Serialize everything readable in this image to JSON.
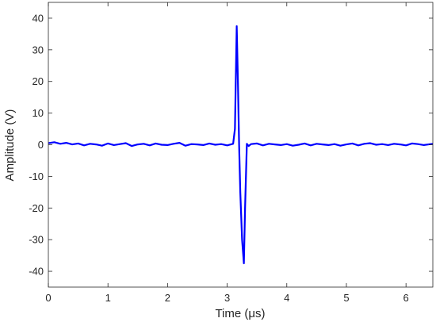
{
  "chart_data": {
    "type": "line",
    "title": "",
    "xlabel": "Time (μs)",
    "ylabel": "Amplitude (V)",
    "xlim": [
      0,
      6.45
    ],
    "ylim": [
      -45,
      45
    ],
    "xticks": [
      0,
      1,
      2,
      3,
      4,
      5,
      6
    ],
    "yticks": [
      40,
      30,
      20,
      10,
      0,
      -10,
      -20,
      -30,
      -40
    ],
    "xtick_labels": [
      "0",
      "1",
      "2",
      "3",
      "4",
      "5",
      "6"
    ],
    "ytick_labels": [
      "40",
      "30",
      "20",
      "10",
      "0",
      "-10",
      "-20",
      "-30",
      "-40"
    ],
    "grid": false,
    "legend": "none",
    "series": [
      {
        "color": "#0000ff",
        "x": [
          0,
          0.1,
          0.2,
          0.3,
          0.4,
          0.5,
          0.6,
          0.7,
          0.8,
          0.9,
          1.0,
          1.1,
          1.2,
          1.3,
          1.4,
          1.5,
          1.6,
          1.7,
          1.8,
          1.9,
          2.0,
          2.1,
          2.2,
          2.3,
          2.4,
          2.5,
          2.6,
          2.7,
          2.8,
          2.9,
          3.0,
          3.1,
          3.13,
          3.16,
          3.18,
          3.2,
          3.22,
          3.25,
          3.28,
          3.3,
          3.33,
          3.36,
          3.4,
          3.5,
          3.6,
          3.7,
          3.8,
          3.9,
          4.0,
          4.1,
          4.2,
          4.3,
          4.4,
          4.5,
          4.6,
          4.7,
          4.8,
          4.9,
          5.0,
          5.1,
          5.2,
          5.3,
          5.4,
          5.5,
          5.6,
          5.7,
          5.8,
          5.9,
          6.0,
          6.1,
          6.2,
          6.3,
          6.45
        ],
        "y": [
          0.5,
          0.8,
          0.3,
          0.6,
          0.1,
          0.4,
          -0.2,
          0.3,
          0.1,
          -0.3,
          0.4,
          -0.1,
          0.2,
          0.5,
          -0.4,
          0.1,
          0.3,
          -0.2,
          0.4,
          0.0,
          -0.1,
          0.3,
          0.6,
          -0.3,
          0.2,
          0.1,
          -0.1,
          0.4,
          0.0,
          0.2,
          -0.2,
          0.3,
          5,
          37.5,
          20,
          0,
          -15,
          -30,
          -37.5,
          -20,
          0.3,
          -0.4,
          0.2,
          0.4,
          -0.2,
          0.3,
          0.1,
          -0.1,
          0.2,
          -0.3,
          0.0,
          0.4,
          -0.2,
          0.3,
          0.1,
          -0.1,
          0.2,
          -0.3,
          0.1,
          0.4,
          -0.2,
          0.3,
          0.5,
          0.0,
          0.2,
          -0.1,
          0.3,
          0.1,
          -0.2,
          0.4,
          0.2,
          -0.1,
          0.3
        ]
      }
    ]
  }
}
